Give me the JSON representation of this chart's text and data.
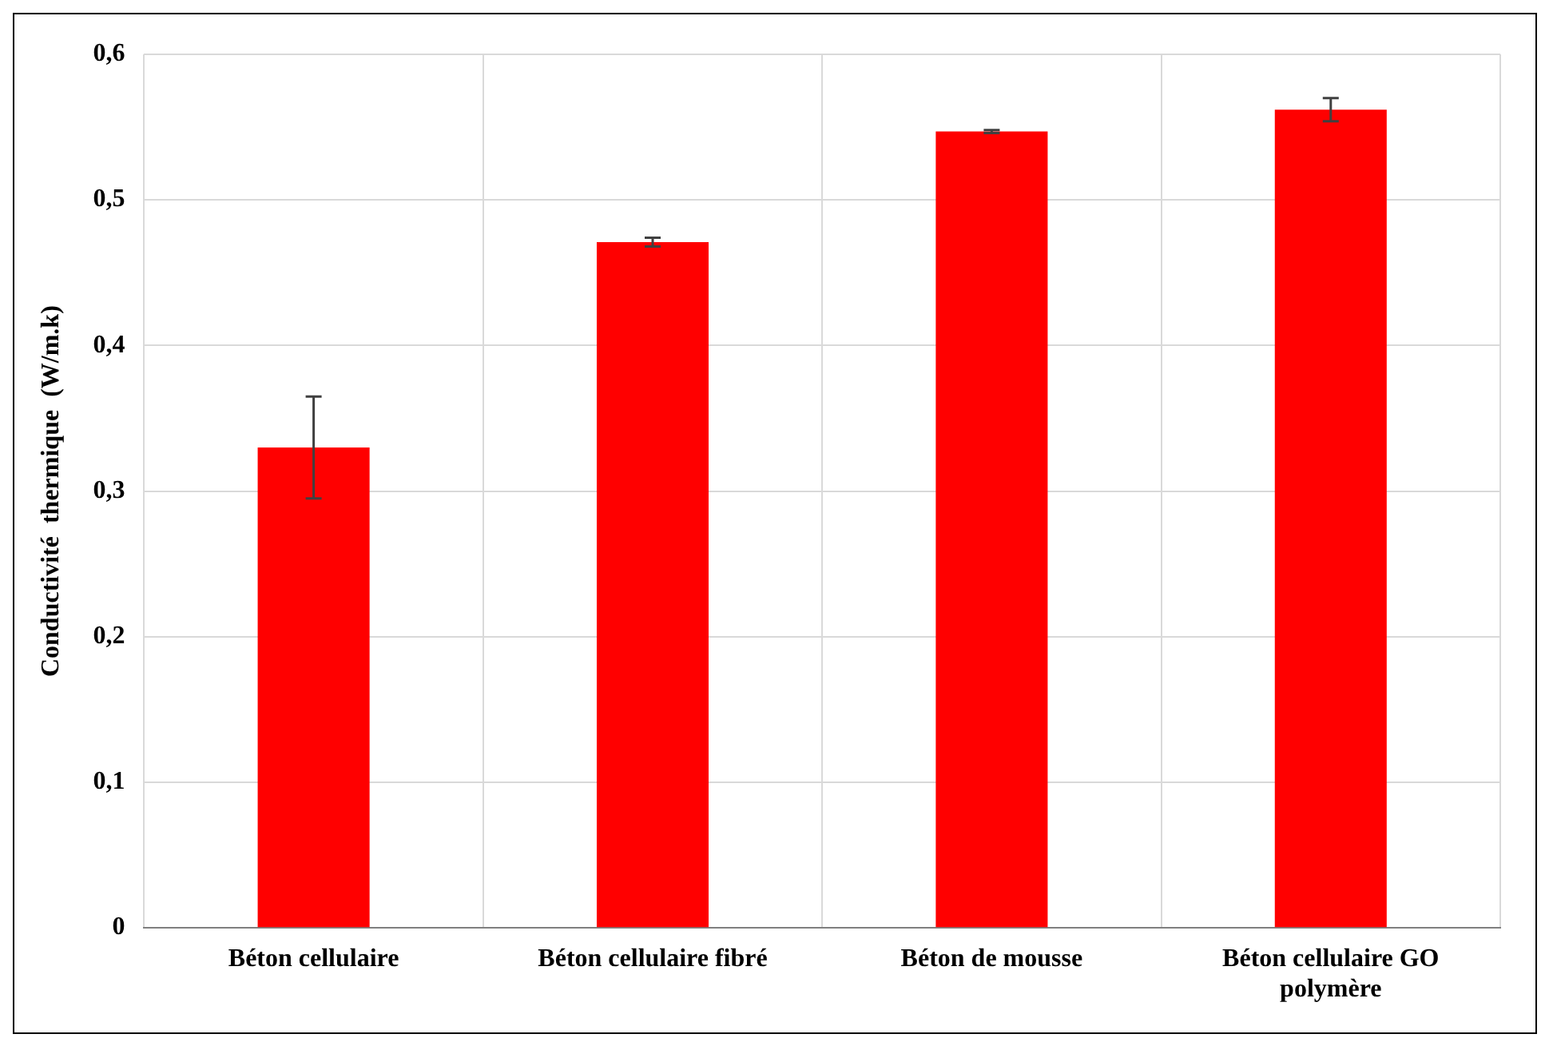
{
  "chart_data": {
    "type": "bar",
    "ylabel": "Conductivité  thermique  (W/m.k)",
    "categories": [
      "Béton cellulaire",
      "Béton cellulaire fibré",
      "Béton de mousse",
      "Béton cellulaire GO polymère"
    ],
    "values": [
      0.33,
      0.471,
      0.547,
      0.562
    ],
    "errors": [
      0.035,
      0.003,
      0.001,
      0.008
    ],
    "color": "#ff0000",
    "ylim": [
      0,
      0.6
    ],
    "yticks": [
      {
        "value": 0,
        "label": "0"
      },
      {
        "value": 0.1,
        "label": "0,1"
      },
      {
        "value": 0.2,
        "label": "0,2"
      },
      {
        "value": 0.3,
        "label": "0,3"
      },
      {
        "value": 0.4,
        "label": "0,4"
      },
      {
        "value": 0.5,
        "label": "0,5"
      },
      {
        "value": 0.6,
        "label": "0,6"
      }
    ],
    "grid": true
  }
}
